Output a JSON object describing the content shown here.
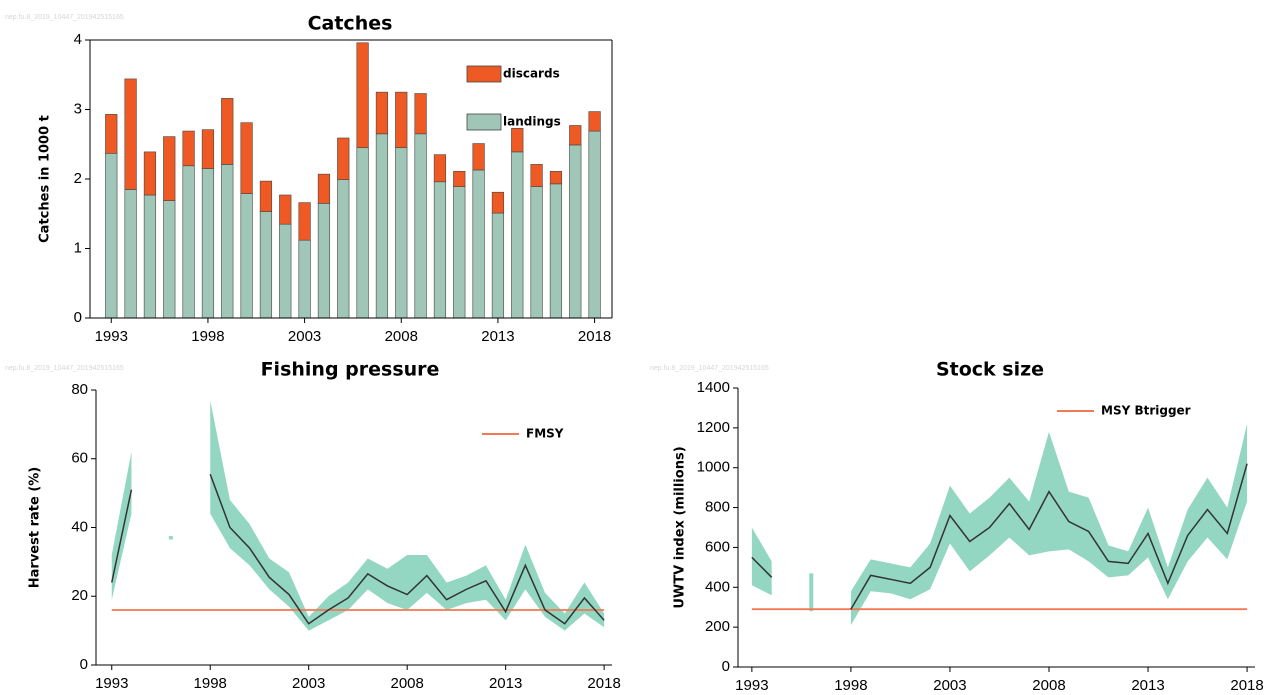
{
  "chart_data": [
    {
      "type": "bar",
      "stacked": true,
      "watermark": "nep.fu.8_2019_10447_201942515165",
      "title": "Catches",
      "y_label": "Catches in 1000 t",
      "x": [
        1993,
        1994,
        1995,
        1996,
        1997,
        1998,
        1999,
        2000,
        2001,
        2002,
        2003,
        2004,
        2005,
        2006,
        2007,
        2008,
        2009,
        2010,
        2011,
        2012,
        2013,
        2014,
        2015,
        2016,
        2017,
        2018
      ],
      "series": [
        {
          "name": "landings",
          "color": "#9fc6b6",
          "values": [
            2.37,
            1.85,
            1.77,
            1.69,
            2.19,
            2.15,
            2.21,
            1.79,
            1.53,
            1.35,
            1.12,
            1.65,
            1.99,
            2.45,
            2.65,
            2.45,
            2.65,
            1.96,
            1.89,
            2.13,
            1.51,
            2.39,
            1.89,
            1.93,
            2.49,
            2.69
          ]
        },
        {
          "name": "discards",
          "color": "#ef5a24",
          "values": [
            0.56,
            1.59,
            0.62,
            0.92,
            0.5,
            0.56,
            0.95,
            1.02,
            0.44,
            0.42,
            0.54,
            0.42,
            0.6,
            1.51,
            0.6,
            0.8,
            0.58,
            0.39,
            0.22,
            0.38,
            0.3,
            0.34,
            0.32,
            0.18,
            0.28,
            0.28
          ]
        }
      ],
      "xlim": [
        1991.9,
        2018.9
      ],
      "xticks": [
        1993,
        1998,
        2003,
        2008,
        2013,
        2018
      ],
      "ylim": [
        0,
        4
      ],
      "yticks": [
        0,
        1,
        2,
        3,
        4
      ],
      "legend": "top-right"
    },
    {
      "type": "line",
      "watermark": "nep.fu.8_2019_10447_201942515165",
      "title": "Fishing pressure",
      "y_label": "Harvest rate (%)",
      "x": [
        1993,
        1994,
        1995,
        1996,
        1997,
        1998,
        1999,
        2000,
        2001,
        2002,
        2003,
        2004,
        2005,
        2006,
        2007,
        2008,
        2009,
        2010,
        2011,
        2012,
        2013,
        2014,
        2015,
        2016,
        2017,
        2018
      ],
      "values": [
        24,
        51,
        null,
        null,
        null,
        55.5,
        40,
        34,
        25.5,
        20.5,
        12,
        16,
        19.5,
        26.5,
        23,
        20.5,
        26,
        19,
        22,
        24.5,
        15.5,
        29,
        16,
        12,
        19.5,
        13
      ],
      "lower": [
        19,
        44,
        null,
        36.5,
        null,
        44,
        34,
        29,
        22,
        17,
        10,
        13,
        16,
        22,
        18,
        16,
        21,
        16,
        18,
        19,
        13,
        22,
        14,
        10,
        15,
        11
      ],
      "upper": [
        32,
        62,
        null,
        37.5,
        null,
        77,
        48,
        41,
        31,
        27,
        14,
        20,
        24,
        31,
        28,
        32,
        32,
        24,
        26,
        29,
        19,
        35,
        21,
        15,
        24,
        15
      ],
      "line_color": "#333333",
      "band_color": "#93d6c1",
      "reference": {
        "name": "FMSY",
        "value": 16,
        "color": "#f07a55"
      },
      "xlim": [
        1992.2,
        2018.4
      ],
      "xticks": [
        1993,
        1998,
        2003,
        2008,
        2013,
        2018
      ],
      "ylim": [
        0,
        80
      ],
      "yticks": [
        0,
        20,
        40,
        60,
        80
      ],
      "legend": "top-right"
    },
    {
      "type": "line",
      "watermark": "nep.fu.8_2019_10447_201942515165",
      "title": "Stock size",
      "y_label": "UWTV index (millions)",
      "x": [
        1993,
        1994,
        1995,
        1996,
        1997,
        1998,
        1999,
        2000,
        2001,
        2002,
        2003,
        2004,
        2005,
        2006,
        2007,
        2008,
        2009,
        2010,
        2011,
        2012,
        2013,
        2014,
        2015,
        2016,
        2017,
        2018
      ],
      "values": [
        550,
        450,
        null,
        null,
        null,
        290,
        460,
        440,
        420,
        500,
        760,
        630,
        700,
        820,
        690,
        880,
        730,
        680,
        530,
        520,
        670,
        420,
        660,
        790,
        670,
        1020
      ],
      "lower": [
        410,
        360,
        null,
        280,
        null,
        210,
        380,
        370,
        340,
        390,
        620,
        480,
        560,
        650,
        560,
        580,
        590,
        530,
        450,
        460,
        550,
        340,
        530,
        650,
        540,
        830
      ],
      "upper": [
        700,
        530,
        null,
        470,
        null,
        380,
        540,
        520,
        500,
        620,
        910,
        770,
        850,
        950,
        830,
        1180,
        880,
        850,
        610,
        580,
        800,
        500,
        790,
        950,
        800,
        1220
      ],
      "line_color": "#333333",
      "band_color": "#93d6c1",
      "reference": {
        "name": "MSY Btrigger",
        "value": 290,
        "color": "#f07a55"
      },
      "xlim": [
        1992.3,
        2018.4
      ],
      "xticks": [
        1993,
        1998,
        2003,
        2008,
        2013,
        2018
      ],
      "ylim": [
        0,
        1400
      ],
      "yticks": [
        0,
        200,
        400,
        600,
        800,
        1000,
        1200,
        1400
      ],
      "legend": "top-right"
    }
  ]
}
